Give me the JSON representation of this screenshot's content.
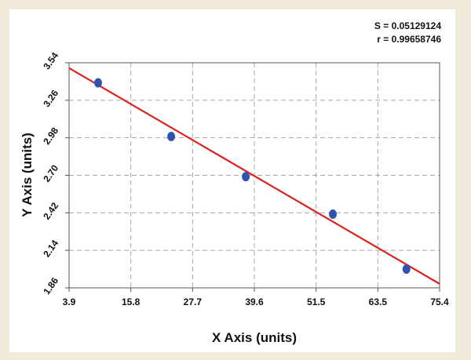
{
  "chart_data": {
    "type": "scatter",
    "xlabel": "X Axis (units)",
    "ylabel": "Y Axis (units)",
    "xlim": [
      3.9,
      75.4
    ],
    "ylim": [
      1.86,
      3.54
    ],
    "x_ticks": [
      "3.9",
      "15.8",
      "27.7",
      "39.6",
      "51.5",
      "63.5",
      "75.4"
    ],
    "y_ticks": [
      "1.86",
      "2.14",
      "2.42",
      "2.70",
      "2.98",
      "3.26",
      "3.54"
    ],
    "grid": true,
    "annotations": [
      "S = 0.05129124",
      "r = 0.99658746"
    ],
    "series": [
      {
        "points": [
          {
            "x": 9.5,
            "y": 3.39
          },
          {
            "x": 23.6,
            "y": 2.99
          },
          {
            "x": 38.0,
            "y": 2.69
          },
          {
            "x": 54.8,
            "y": 2.41
          },
          {
            "x": 69.0,
            "y": 2.0
          }
        ],
        "color": "#2f54b0"
      }
    ],
    "fit_line": {
      "start": {
        "x": 3.9,
        "y": 3.5
      },
      "end": {
        "x": 75.4,
        "y": 1.89
      },
      "color": "#dd2222"
    }
  }
}
